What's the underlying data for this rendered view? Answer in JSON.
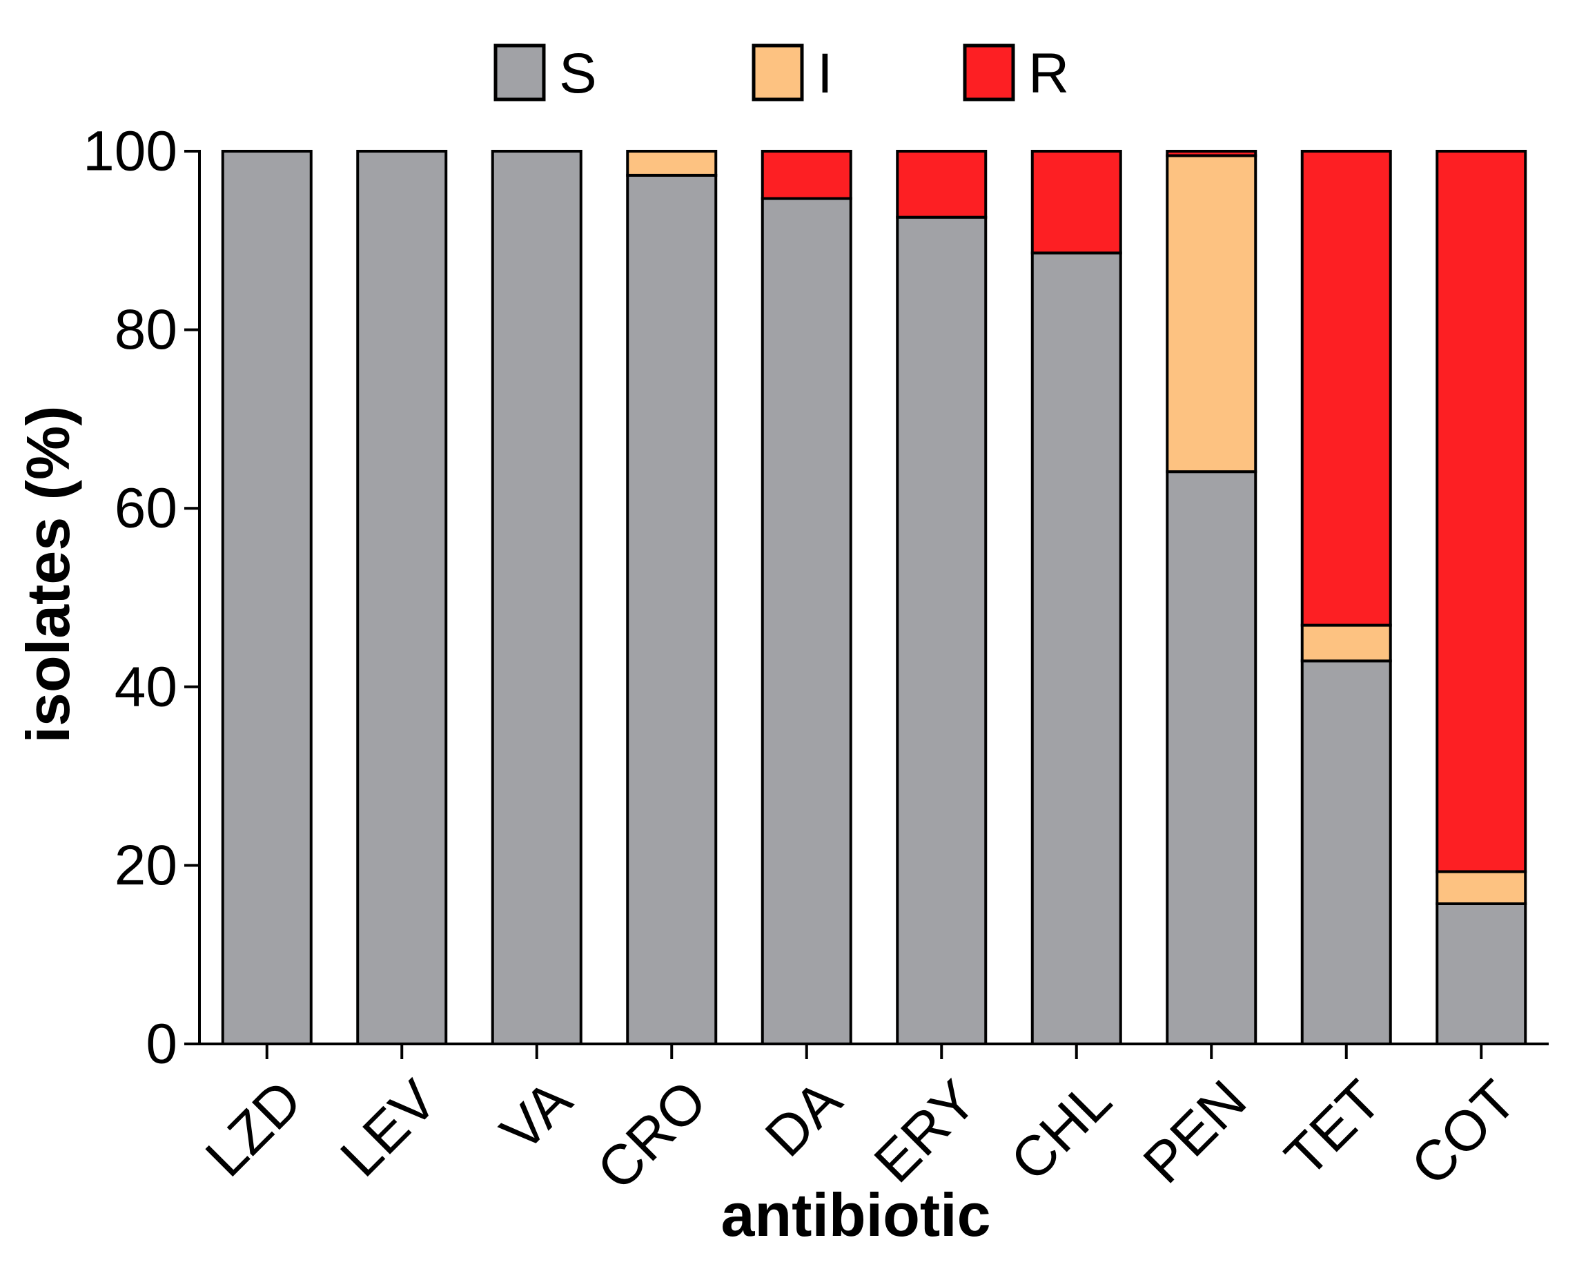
{
  "chart_data": {
    "type": "bar",
    "stacked": true,
    "xlabel": "antibiotic",
    "ylabel": "isolates (%)",
    "ylim": [
      0,
      100
    ],
    "yticks": [
      0,
      20,
      40,
      60,
      80,
      100
    ],
    "grid": false,
    "legend_position": "top-center",
    "categories": [
      "LZD",
      "LEV",
      "VA",
      "CRO",
      "DA",
      "ERY",
      "CHL",
      "PEN",
      "TET",
      "COT"
    ],
    "series": [
      {
        "name": "S",
        "color": "#a1a2a6",
        "values": [
          100,
          100,
          100,
          97.3,
          94.7,
          92.6,
          88.6,
          64.1,
          42.9,
          15.7
        ]
      },
      {
        "name": "I",
        "color": "#fdc281",
        "values": [
          0,
          0,
          0,
          2.7,
          0,
          0,
          0,
          35.4,
          4.0,
          3.6
        ]
      },
      {
        "name": "R",
        "color": "#fd1f23",
        "values": [
          0,
          0,
          0,
          0,
          5.3,
          7.4,
          11.4,
          0.5,
          53.1,
          80.7
        ]
      }
    ]
  }
}
